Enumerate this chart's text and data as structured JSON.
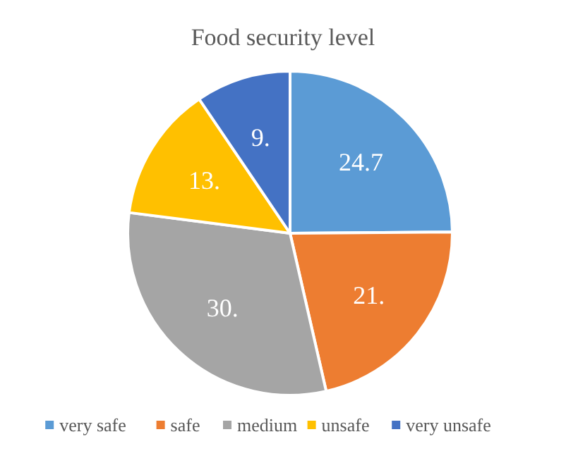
{
  "chart_data": {
    "type": "pie",
    "title": "Food security level",
    "categories": [
      "very safe",
      "safe",
      "medium",
      "unsafe",
      "very unsafe"
    ],
    "values": [
      24.7,
      21.4,
      30.4,
      13.4,
      9.4
    ],
    "value_labels": [
      "24.7",
      "21.",
      "30.",
      "13.",
      "9."
    ],
    "colors": [
      "#5b9bd5",
      "#ed7d31",
      "#a5a5a5",
      "#ffc000",
      "#4472c4"
    ],
    "legend": "bottom"
  }
}
